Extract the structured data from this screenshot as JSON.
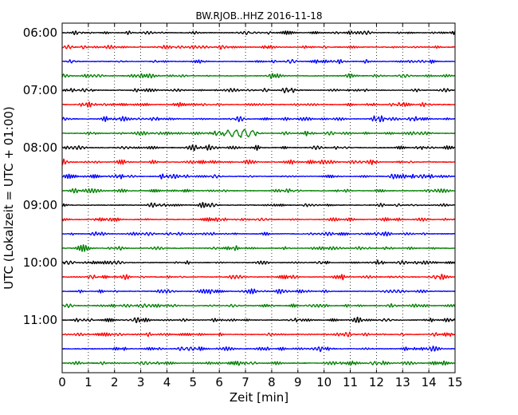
{
  "chart_data": {
    "type": "line",
    "title": "BW.RJOB..HHZ 2016-11-18",
    "xlabel": "Zeit  [min]",
    "ylabel": "UTC (Lokalzeit = UTC + 01:00)",
    "xlim": [
      0,
      15
    ],
    "x_ticks": [
      "0",
      "1",
      "2",
      "3",
      "4",
      "5",
      "6",
      "7",
      "8",
      "9",
      "10",
      "11",
      "12",
      "13",
      "14",
      "15"
    ],
    "hour_labels": [
      "06:00",
      "07:00",
      "08:00",
      "09:00",
      "10:00",
      "11:00"
    ],
    "rows_per_hour": 4,
    "row_count": 24,
    "start_row_time": "06:00",
    "minutes_per_row": 15,
    "trace_colors": [
      "#000000",
      "#ff0000",
      "#0000ff",
      "#008000"
    ],
    "vertical_grid": true,
    "grid_style": "dotted",
    "event": {
      "row_time": "07:45",
      "start_min": 5.5,
      "end_min": 7.4,
      "peak_min": 7.0,
      "relative_amplitude": 2.8
    },
    "series": []
  }
}
